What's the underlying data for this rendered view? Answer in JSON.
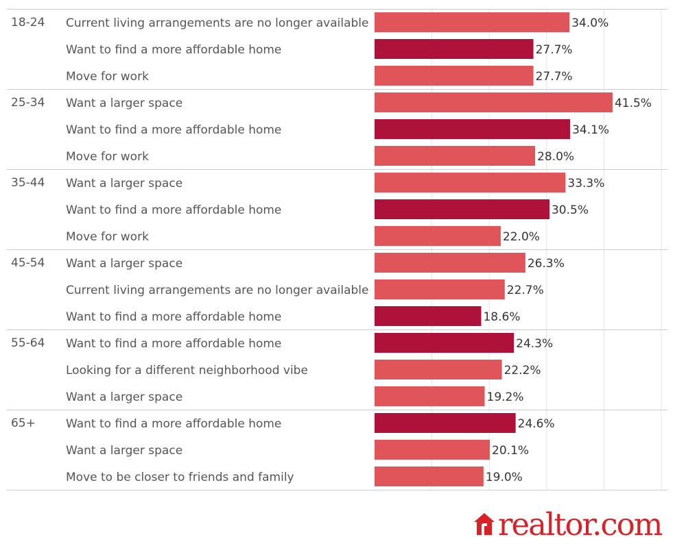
{
  "chart_data": {
    "type": "bar",
    "orientation": "horizontal",
    "value_format": "percent",
    "xlim": [
      0,
      45
    ],
    "grid": true,
    "colors": {
      "affordable": "#ae1139",
      "other": "#e05559",
      "grid": "#e4e4e4",
      "separator": "#cccccc"
    },
    "groups": [
      {
        "age": "18-24",
        "rows": [
          {
            "reason": "Current living arrangements are no longer available",
            "value": 34.0,
            "label": "34.0%",
            "highlight": false
          },
          {
            "reason": "Want to find a more affordable home",
            "value": 27.7,
            "label": "27.7%",
            "highlight": true
          },
          {
            "reason": "Move for work",
            "value": 27.7,
            "label": "27.7%",
            "highlight": false
          }
        ]
      },
      {
        "age": "25-34",
        "rows": [
          {
            "reason": "Want a larger space",
            "value": 41.5,
            "label": "41.5%",
            "highlight": false
          },
          {
            "reason": "Want to find a more affordable home",
            "value": 34.1,
            "label": "34.1%",
            "highlight": true
          },
          {
            "reason": "Move for work",
            "value": 28.0,
            "label": "28.0%",
            "highlight": false
          }
        ]
      },
      {
        "age": "35-44",
        "rows": [
          {
            "reason": "Want a larger space",
            "value": 33.3,
            "label": "33.3%",
            "highlight": false
          },
          {
            "reason": "Want to find a more affordable home",
            "value": 30.5,
            "label": "30.5%",
            "highlight": true
          },
          {
            "reason": "Move for work",
            "value": 22.0,
            "label": "22.0%",
            "highlight": false
          }
        ]
      },
      {
        "age": "45-54",
        "rows": [
          {
            "reason": "Want a larger space",
            "value": 26.3,
            "label": "26.3%",
            "highlight": false
          },
          {
            "reason": "Current living arrangements are no longer available",
            "value": 22.7,
            "label": "22.7%",
            "highlight": false
          },
          {
            "reason": "Want to find a more affordable home",
            "value": 18.6,
            "label": "18.6%",
            "highlight": true
          }
        ]
      },
      {
        "age": "55-64",
        "rows": [
          {
            "reason": "Want to find a more affordable home",
            "value": 24.3,
            "label": "24.3%",
            "highlight": true
          },
          {
            "reason": "Looking for a different neighborhood vibe",
            "value": 22.2,
            "label": "22.2%",
            "highlight": false
          },
          {
            "reason": "Want a larger space",
            "value": 19.2,
            "label": "19.2%",
            "highlight": false
          }
        ]
      },
      {
        "age": "65+",
        "rows": [
          {
            "reason": "Want to find a more affordable home",
            "value": 24.6,
            "label": "24.6%",
            "highlight": true
          },
          {
            "reason": "Want a larger space",
            "value": 20.1,
            "label": "20.1%",
            "highlight": false
          },
          {
            "reason": "Move to be closer to friends and family",
            "value": 19.0,
            "label": "19.0%",
            "highlight": false
          }
        ]
      }
    ]
  },
  "logo": {
    "text": "realtor.com",
    "color": "#d92228",
    "icon": "house-icon"
  }
}
